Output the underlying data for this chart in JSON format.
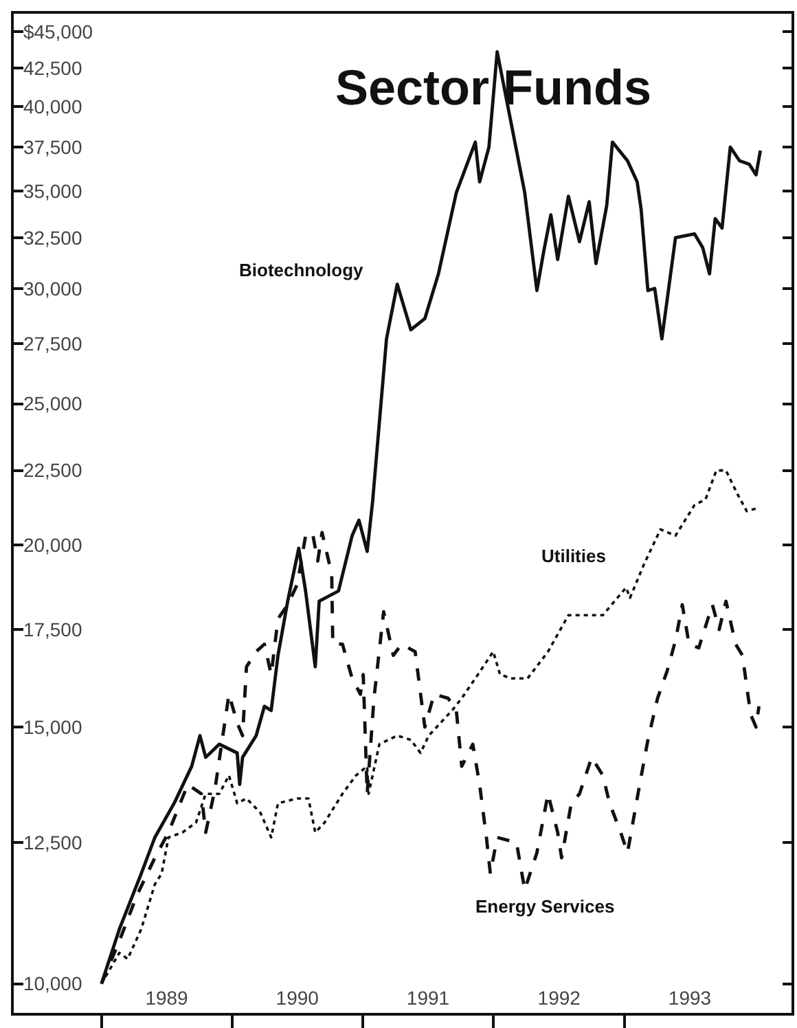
{
  "chart_data": {
    "type": "line",
    "title": "Sector Funds",
    "log": "y",
    "legend": false,
    "marker": "none",
    "xlim": [
      "1988-05-01",
      "1994-04-12"
    ],
    "xticks": [
      {
        "value": "1989-01-01",
        "label": null
      },
      {
        "value": "1990-01-01",
        "label": null
      },
      {
        "value": "1991-01-01",
        "label": null
      },
      {
        "value": "1992-01-01",
        "label": null
      },
      {
        "value": "1993-01-01",
        "label": null
      },
      {
        "value": "1989-07-02",
        "label": "1989"
      },
      {
        "value": "1990-07-02",
        "label": "1990"
      },
      {
        "value": "1991-07-02",
        "label": "1991"
      },
      {
        "value": "1992-07-02",
        "label": "1992"
      },
      {
        "value": "1993-07-02",
        "label": "1993"
      }
    ],
    "ylim": [
      9550,
      46300
    ],
    "yticks": [
      {
        "value": 10000,
        "label": "10,000"
      },
      {
        "value": 12500,
        "label": "12,500"
      },
      {
        "value": 15000,
        "label": "15,000"
      },
      {
        "value": 17500,
        "label": "17,500"
      },
      {
        "value": 20000,
        "label": "20,000"
      },
      {
        "value": 22500,
        "label": "22,500"
      },
      {
        "value": 25000,
        "label": "25,000"
      },
      {
        "value": 27500,
        "label": "27,500"
      },
      {
        "value": 30000,
        "label": "30,000"
      },
      {
        "value": 32500,
        "label": "32,500"
      },
      {
        "value": 35000,
        "label": "35,000"
      },
      {
        "value": 37500,
        "label": "37,500"
      },
      {
        "value": 40000,
        "label": "40,000"
      },
      {
        "value": 42500,
        "label": "42,500"
      },
      {
        "value": 45000,
        "label": "$45,000"
      }
    ],
    "series": [
      {
        "name": "Biotechnology",
        "color": "#111111",
        "line_style": "solid",
        "x": [
          "1989-01-01",
          "1989-02-20",
          "1989-04-22",
          "1989-05-30",
          "1989-07-23",
          "1989-09-10",
          "1989-10-03",
          "1989-10-19",
          "1989-11-26",
          "1990-01-15",
          "1990-01-22",
          "1990-01-30",
          "1990-03-09",
          "1990-04-01",
          "1990-04-20",
          "1990-05-09",
          "1990-06-05",
          "1990-07-06",
          "1990-07-25",
          "1990-08-21",
          "1990-09-01",
          "1990-10-25",
          "1990-12-02",
          "1990-12-21",
          "1991-01-13",
          "1991-01-28",
          "1991-03-08",
          "1991-04-07",
          "1991-05-15",
          "1991-06-23",
          "1991-07-31",
          "1991-09-19",
          "1991-11-11",
          "1991-11-23",
          "1991-12-19",
          "1992-01-11",
          "1992-03-05",
          "1992-03-28",
          "1992-05-01",
          "1992-05-20",
          "1992-06-09",
          "1992-06-28",
          "1992-07-28",
          "1992-08-28",
          "1992-09-24",
          "1992-10-13",
          "1992-11-12",
          "1992-11-28",
          "1993-01-09",
          "1993-02-05",
          "1993-02-16",
          "1993-03-07",
          "1993-03-26",
          "1993-04-15",
          "1993-05-23",
          "1993-07-15",
          "1993-08-07",
          "1993-08-26",
          "1993-09-11",
          "1993-09-30",
          "1993-10-23",
          "1993-11-18",
          "1993-12-15",
          "1994-01-03",
          "1994-01-15"
        ],
        "values": [
          10000,
          10900,
          11900,
          12600,
          13300,
          14100,
          14800,
          14300,
          14600,
          14400,
          13700,
          14300,
          14800,
          15500,
          15400,
          16800,
          18300,
          19900,
          18600,
          16500,
          18300,
          18600,
          20300,
          20800,
          19800,
          21400,
          27700,
          30200,
          28100,
          28600,
          30700,
          34900,
          37800,
          35500,
          37500,
          43600,
          37300,
          34900,
          29900,
          31800,
          33700,
          31400,
          34700,
          32300,
          34400,
          31200,
          34200,
          37800,
          36700,
          35500,
          34000,
          29900,
          30000,
          27700,
          32500,
          32700,
          32000,
          30700,
          33500,
          33000,
          37500,
          36700,
          36500,
          35900,
          37300
        ]
      },
      {
        "name": "Utilities",
        "color": "#111111",
        "line_style": "dotted",
        "x": [
          "1989-01-01",
          "1989-02-20",
          "1989-03-15",
          "1989-04-22",
          "1989-05-30",
          "1989-06-18",
          "1989-07-07",
          "1989-08-15",
          "1989-09-22",
          "1989-10-19",
          "1989-11-26",
          "1989-12-23",
          "1990-01-15",
          "1990-02-10",
          "1990-03-21",
          "1990-04-20",
          "1990-05-09",
          "1990-07-02",
          "1990-08-02",
          "1990-08-21",
          "1990-09-16",
          "1990-11-05",
          "1990-12-13",
          "1991-01-13",
          "1991-01-17",
          "1991-02-16",
          "1991-04-07",
          "1991-05-15",
          "1991-06-11",
          "1991-07-04",
          "1991-09-07",
          "1991-10-04",
          "1991-11-11",
          "1991-12-31",
          "1992-01-19",
          "1992-02-19",
          "1992-04-05",
          "1992-06-01",
          "1992-07-28",
          "1992-11-01",
          "1993-01-05",
          "1993-01-16",
          "1993-02-24",
          "1993-04-11",
          "1993-05-23",
          "1993-07-15",
          "1993-08-15",
          "1993-09-14",
          "1993-10-11",
          "1993-11-11",
          "1993-12-08",
          "1994-01-07"
        ],
        "values": [
          10000,
          10500,
          10400,
          10900,
          11700,
          11900,
          12600,
          12700,
          12900,
          13500,
          13500,
          13900,
          13300,
          13400,
          13100,
          12600,
          13300,
          13400,
          13400,
          12700,
          12900,
          13500,
          13900,
          14100,
          13500,
          14600,
          14800,
          14700,
          14400,
          14800,
          15400,
          15700,
          16200,
          16900,
          16300,
          16200,
          16200,
          16900,
          17900,
          17900,
          18700,
          18400,
          19400,
          20500,
          20300,
          21300,
          21500,
          22500,
          22500,
          21700,
          21100,
          21200
        ]
      },
      {
        "name": "Energy Services",
        "color": "#111111",
        "line_style": "dashed",
        "x": [
          "1989-01-01",
          "1989-02-20",
          "1989-04-10",
          "1989-05-30",
          "1989-07-07",
          "1989-08-30",
          "1989-10-07",
          "1989-10-19",
          "1989-11-14",
          "1989-12-23",
          "1990-01-15",
          "1990-01-30",
          "1990-02-10",
          "1990-03-09",
          "1990-04-01",
          "1990-04-20",
          "1990-05-09",
          "1990-06-05",
          "1990-07-02",
          "1990-07-25",
          "1990-08-13",
          "1990-08-28",
          "1990-09-09",
          "1990-10-06",
          "1990-10-09",
          "1990-11-05",
          "1990-12-02",
          "1990-12-25",
          "1991-01-02",
          "1991-01-13",
          "1991-02-01",
          "1991-02-28",
          "1991-03-27",
          "1991-04-19",
          "1991-05-27",
          "1991-06-23",
          "1991-07-19",
          "1991-08-27",
          "1991-09-19",
          "1991-10-04",
          "1991-11-04",
          "1991-11-23",
          "1991-12-12",
          "1991-12-23",
          "1992-01-11",
          "1992-03-05",
          "1992-03-28",
          "1992-05-01",
          "1992-06-01",
          "1992-06-28",
          "1992-07-09",
          "1992-08-05",
          "1992-08-28",
          "1992-10-01",
          "1992-11-01",
          "1992-11-20",
          "1992-12-21",
          "1993-01-09",
          "1993-02-12",
          "1993-03-07",
          "1993-04-03",
          "1993-04-30",
          "1993-05-23",
          "1993-06-11",
          "1993-06-30",
          "1993-07-27",
          "1993-09-03",
          "1993-09-22",
          "1993-10-11",
          "1993-11-07",
          "1993-11-26",
          "1993-12-19",
          "1994-01-03",
          "1994-01-11"
        ],
        "values": [
          10000,
          10700,
          11500,
          12200,
          12700,
          13700,
          13500,
          12700,
          13600,
          15800,
          15100,
          14800,
          16500,
          16900,
          17100,
          16300,
          17800,
          18200,
          18800,
          20300,
          20400,
          19500,
          20400,
          19100,
          17100,
          17100,
          16200,
          15800,
          16300,
          13500,
          15700,
          18000,
          16800,
          17100,
          16900,
          15000,
          15800,
          15700,
          15400,
          14100,
          14600,
          13700,
          12600,
          11900,
          12600,
          12500,
          11600,
          12300,
          13500,
          12700,
          12200,
          13300,
          13500,
          14300,
          13900,
          13300,
          12700,
          12300,
          13700,
          14700,
          15700,
          16400,
          17200,
          18200,
          17100,
          17000,
          18200,
          17500,
          18300,
          17100,
          16800,
          15300,
          15000,
          15500
        ]
      }
    ]
  }
}
